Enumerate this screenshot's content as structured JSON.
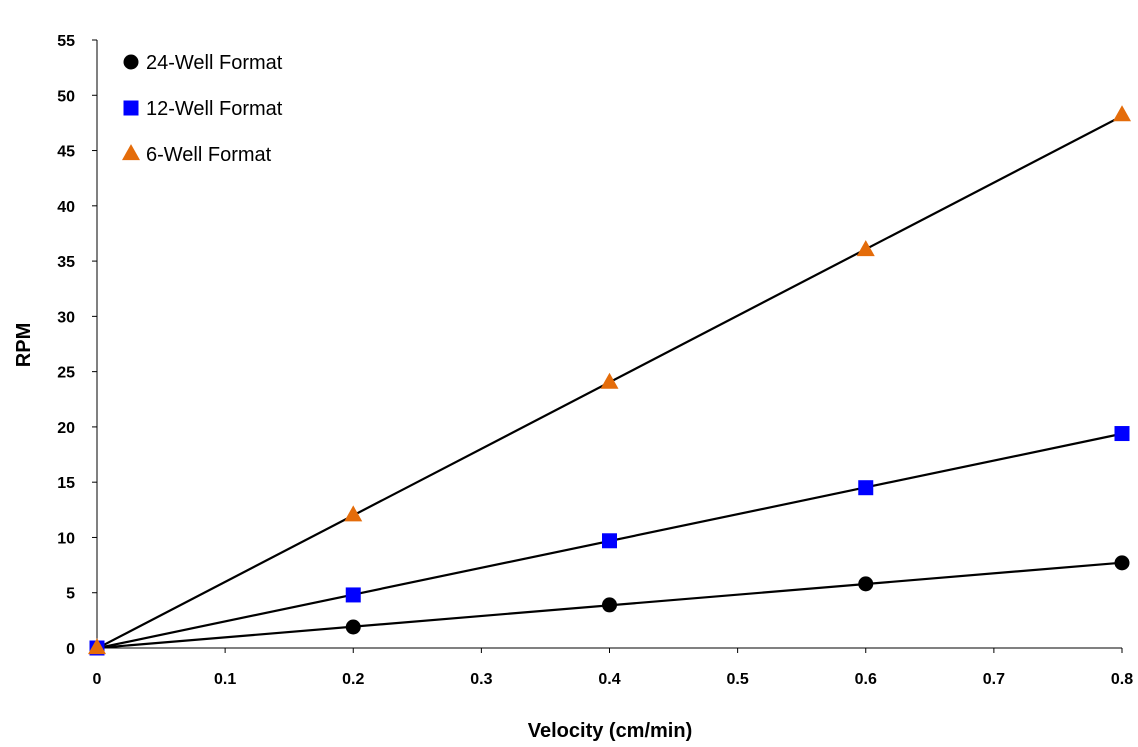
{
  "chart_data": {
    "type": "scatter",
    "title": "",
    "xlabel": "Velocity (cm/min)",
    "ylabel": "RPM",
    "xlim": [
      0,
      0.8
    ],
    "ylim": [
      0,
      55
    ],
    "x_ticks": [
      0,
      0.1,
      0.2,
      0.3,
      0.4,
      0.5,
      0.6,
      0.7,
      0.8
    ],
    "y_ticks": [
      0,
      5,
      10,
      15,
      20,
      25,
      30,
      35,
      40,
      45,
      50,
      55
    ],
    "grid": false,
    "legend_position": "top-left",
    "trendlines": "linear",
    "series": [
      {
        "name": "24-Well Format",
        "marker": "circle",
        "color": "#000000",
        "x": [
          0,
          0.2,
          0.4,
          0.6,
          0.8
        ],
        "y": [
          0,
          1.9,
          3.9,
          5.8,
          7.7
        ]
      },
      {
        "name": "12-Well Format",
        "marker": "square",
        "color": "#0000ff",
        "x": [
          0,
          0.2,
          0.4,
          0.6,
          0.8
        ],
        "y": [
          0,
          4.8,
          9.7,
          14.5,
          19.4
        ]
      },
      {
        "name": "6-Well Format",
        "marker": "triangle",
        "color": "#e46c0a",
        "x": [
          0,
          0.2,
          0.4,
          0.6,
          0.8
        ],
        "y": [
          0,
          12.0,
          24.0,
          36.0,
          48.2
        ]
      }
    ]
  }
}
